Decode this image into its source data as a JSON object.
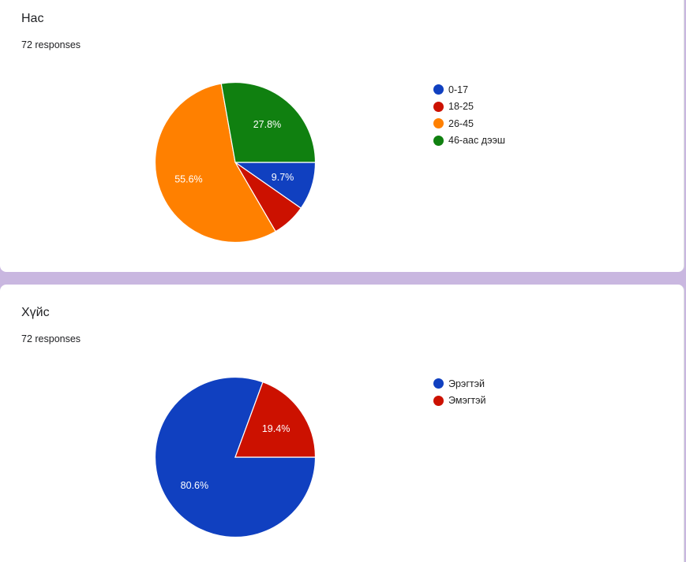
{
  "chart_data": [
    {
      "type": "pie",
      "title": "Нас",
      "subtitle": "72 responses",
      "categories": [
        "0-17",
        "18-25",
        "26-45",
        "46-аас дээш"
      ],
      "values": [
        9.7,
        6.9,
        55.6,
        27.8
      ],
      "labels": [
        "9.7%",
        "",
        "55.6%",
        "27.8%"
      ],
      "colors": [
        "#1040c0",
        "#cc1100",
        "#ff8000",
        "#108010"
      ],
      "legend_position": "right"
    },
    {
      "type": "pie",
      "title": "Хүйс",
      "subtitle": "72 responses",
      "categories": [
        "Эрэгтэй",
        "Эмэгтэй"
      ],
      "values": [
        80.6,
        19.4
      ],
      "labels": [
        "80.6%",
        "19.4%"
      ],
      "colors": [
        "#1040c0",
        "#cc1100"
      ],
      "legend_position": "right"
    }
  ]
}
